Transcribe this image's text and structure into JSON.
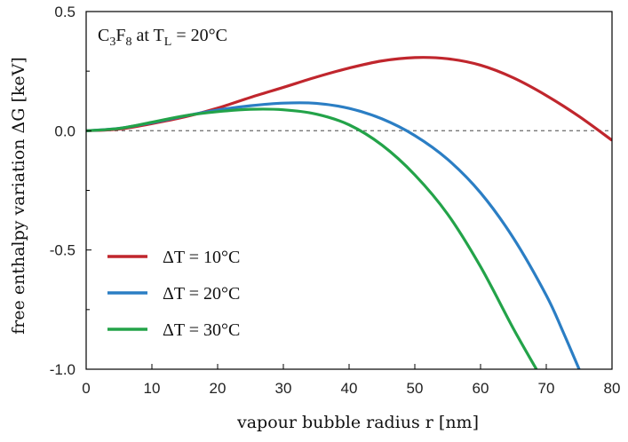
{
  "chart_data": {
    "type": "line",
    "annotation": {
      "parts": [
        {
          "text": "C",
          "sub": false
        },
        {
          "text": "3",
          "sub": true
        },
        {
          "text": "F",
          "sub": false
        },
        {
          "text": "8",
          "sub": true
        },
        {
          "text": " at T",
          "sub": false
        },
        {
          "text": "L",
          "sub": true
        },
        {
          "text": " = 20°C",
          "sub": false
        }
      ]
    },
    "xlabel": "vapour bubble radius r [nm]",
    "ylabel": "free enthalpy variation ΔG [keV]",
    "xlim": [
      0,
      80
    ],
    "ylim": [
      -1.0,
      0.5
    ],
    "xticks": [
      0,
      10,
      20,
      30,
      40,
      50,
      60,
      70,
      80
    ],
    "yticks": [
      0.5,
      0.0,
      -0.5,
      -1.0
    ],
    "xtick_labels": [
      "0",
      "10",
      "20",
      "30",
      "40",
      "50",
      "60",
      "70",
      "80"
    ],
    "ytick_labels": [
      "0.5",
      "0.0",
      "-0.5",
      "-1.0"
    ],
    "zero_reference_line": true,
    "legend_position": "lower-left",
    "series": [
      {
        "name": "ΔT = 10°C",
        "color": "#c0262d",
        "x": [
          0,
          5,
          10,
          15,
          20,
          25,
          30,
          35,
          40,
          45,
          50,
          55,
          60,
          65,
          70,
          75,
          80
        ],
        "y": [
          0.0,
          0.007,
          0.03,
          0.058,
          0.095,
          0.14,
          0.182,
          0.225,
          0.263,
          0.293,
          0.307,
          0.302,
          0.275,
          0.222,
          0.148,
          0.06,
          -0.04
        ]
      },
      {
        "name": "ΔT = 20°C",
        "color": "#2b7ec4",
        "x": [
          0,
          5,
          10,
          15,
          20,
          25,
          30,
          35,
          40,
          45,
          50,
          55,
          60,
          65,
          70,
          72.5,
          75
        ],
        "y": [
          0.0,
          0.01,
          0.034,
          0.062,
          0.087,
          0.105,
          0.116,
          0.115,
          0.094,
          0.05,
          -0.02,
          -0.12,
          -0.26,
          -0.45,
          -0.69,
          -0.84,
          -1.0
        ]
      },
      {
        "name": "ΔT = 30°C",
        "color": "#23a349",
        "x": [
          0,
          5,
          10,
          15,
          20,
          25,
          30,
          35,
          40,
          45,
          50,
          55,
          60,
          65,
          68.5
        ],
        "y": [
          0.0,
          0.01,
          0.036,
          0.063,
          0.08,
          0.09,
          0.088,
          0.07,
          0.025,
          -0.06,
          -0.185,
          -0.35,
          -0.57,
          -0.83,
          -1.0
        ]
      }
    ]
  }
}
